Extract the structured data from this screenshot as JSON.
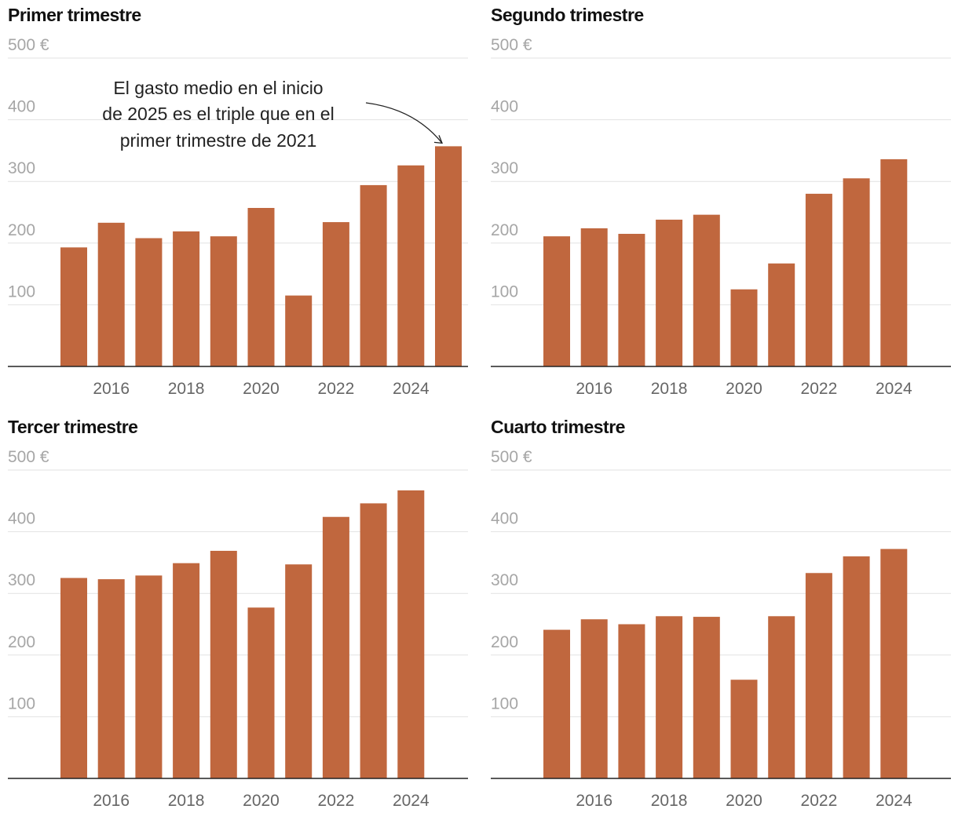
{
  "chart_data": [
    {
      "type": "bar",
      "title": "Primer trimestre",
      "categories": [
        2015,
        2016,
        2017,
        2018,
        2019,
        2020,
        2021,
        2022,
        2023,
        2024,
        2025
      ],
      "values": [
        193,
        233,
        208,
        219,
        211,
        257,
        115,
        234,
        294,
        326,
        357
      ],
      "y_ticks": [
        "100",
        "200",
        "300",
        "400",
        "500 €"
      ],
      "x_ticks": [
        "2016",
        "2018",
        "2020",
        "2022",
        "2024"
      ],
      "ylim": [
        0,
        500
      ],
      "bar_color": "#c0673e",
      "annotation": [
        "El gasto medio en el inicio",
        "de 2025 es el triple que en el",
        "primer trimestre de 2021"
      ]
    },
    {
      "type": "bar",
      "title": "Segundo trimestre",
      "categories": [
        2015,
        2016,
        2017,
        2018,
        2019,
        2020,
        2021,
        2022,
        2023,
        2024
      ],
      "values": [
        211,
        224,
        215,
        238,
        246,
        125,
        167,
        280,
        305,
        336
      ],
      "y_ticks": [
        "100",
        "200",
        "300",
        "400",
        "500 €"
      ],
      "x_ticks": [
        "2016",
        "2018",
        "2020",
        "2022",
        "2024"
      ],
      "ylim": [
        0,
        500
      ],
      "bar_color": "#c0673e"
    },
    {
      "type": "bar",
      "title": "Tercer trimestre",
      "categories": [
        2015,
        2016,
        2017,
        2018,
        2019,
        2020,
        2021,
        2022,
        2023,
        2024
      ],
      "values": [
        325,
        323,
        329,
        349,
        369,
        277,
        347,
        424,
        446,
        467
      ],
      "y_ticks": [
        "100",
        "200",
        "300",
        "400",
        "500 €"
      ],
      "x_ticks": [
        "2016",
        "2018",
        "2020",
        "2022",
        "2024"
      ],
      "ylim": [
        0,
        500
      ],
      "bar_color": "#c0673e"
    },
    {
      "type": "bar",
      "title": "Cuarto trimestre",
      "categories": [
        2015,
        2016,
        2017,
        2018,
        2019,
        2020,
        2021,
        2022,
        2023,
        2024
      ],
      "values": [
        241,
        258,
        250,
        263,
        262,
        160,
        263,
        333,
        360,
        372
      ],
      "y_ticks": [
        "100",
        "200",
        "300",
        "400",
        "500 €"
      ],
      "x_ticks": [
        "2016",
        "2018",
        "2020",
        "2022",
        "2024"
      ],
      "ylim": [
        0,
        500
      ],
      "bar_color": "#c0673e"
    }
  ]
}
